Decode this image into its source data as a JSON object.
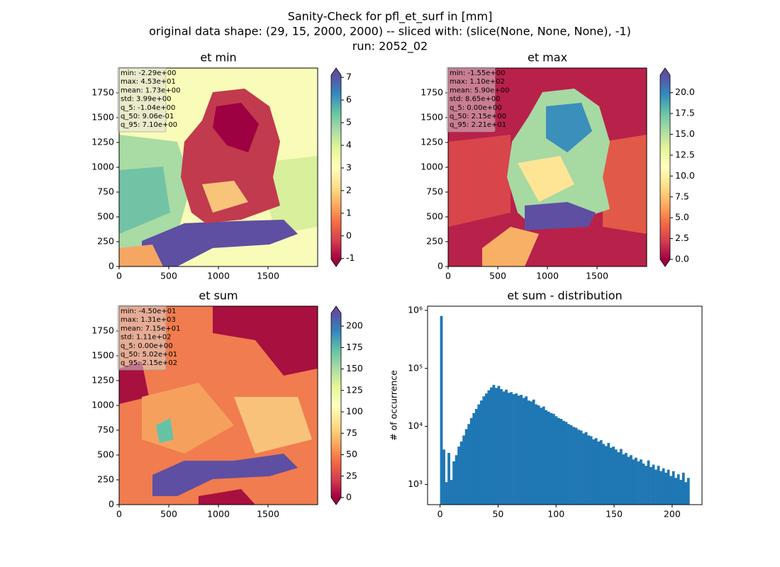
{
  "figure_title": [
    "Sanity-Check for pfl_et_surf in [mm]",
    "original data shape: (29, 15, 2000, 2000) -- sliced with: (slice(None, None, None), -1)",
    "run: 2052_02"
  ],
  "chart_data": [
    {
      "type": "heatmap",
      "title": "et min",
      "xlim": [
        0,
        2000
      ],
      "ylim": [
        0,
        2000
      ],
      "xticks": [
        0,
        500,
        1000,
        1500
      ],
      "yticks": [
        0,
        250,
        500,
        750,
        1000,
        1250,
        1500,
        1750
      ],
      "cmap": "Spectral",
      "clim": [
        -1.04,
        7.1
      ],
      "cticks": [
        -1,
        0,
        1,
        2,
        3,
        4,
        5,
        6,
        7
      ],
      "stats": [
        "min: -2.29e+00",
        "max: 4.53e+01",
        "mean: 1.73e+00",
        "std: 3.99e+00",
        "q_5: -1.04e+00",
        "q_50: 9.06e-01",
        "q_95: 7.10e+00"
      ]
    },
    {
      "type": "heatmap",
      "title": "et max",
      "xlim": [
        0,
        2000
      ],
      "ylim": [
        0,
        2000
      ],
      "xticks": [
        0,
        500,
        1000,
        1500
      ],
      "yticks": [
        0,
        250,
        500,
        750,
        1000,
        1250,
        1500,
        1750
      ],
      "cmap": "Spectral",
      "clim": [
        0.0,
        22.1
      ],
      "cticks": [
        {
          "value": 0,
          "label": "0.0"
        },
        2.5,
        {
          "value": 5,
          "label": "5.0"
        },
        7.5,
        {
          "value": 10,
          "label": "10.0"
        },
        12.5,
        {
          "value": 15,
          "label": "15.0"
        },
        17.5,
        {
          "value": 20,
          "label": "20.0"
        }
      ],
      "stats": [
        "min: -1.55e+00",
        "max: 1.10e+02",
        "mean: 5.90e+00",
        "std: 8.65e+00",
        "q_5: 0.00e+00",
        "q_50: 2.15e+00",
        "q_95: 2.21e+01"
      ]
    },
    {
      "type": "heatmap",
      "title": "et sum",
      "xlim": [
        0,
        2000
      ],
      "ylim": [
        0,
        2000
      ],
      "xticks": [
        0,
        500,
        1000,
        1500
      ],
      "yticks": [
        0,
        250,
        500,
        750,
        1000,
        1250,
        1500,
        1750
      ],
      "cmap": "Spectral",
      "clim": [
        0,
        215
      ],
      "cticks": [
        0,
        25,
        50,
        75,
        100,
        125,
        150,
        175,
        200
      ],
      "stats": [
        "min: -4.50e+01",
        "max: 1.31e+03",
        "mean: 7.15e+01",
        "std: 1.11e+02",
        "q_5: 0.00e+00",
        "q_50: 5.02e+01",
        "q_95: 2.15e+02"
      ]
    },
    {
      "type": "histogram",
      "title": "et sum - distribution",
      "ylabel": "# of occurrence",
      "color": "#1f77b4",
      "log_y": true,
      "xlim": [
        -10.75,
        225.75
      ],
      "ylim": [
        450,
        1180000
      ],
      "xticks": [
        0,
        50,
        100,
        150,
        200
      ],
      "yticks": [
        {
          "value": 1000,
          "label": "10³"
        },
        {
          "value": 10000,
          "label": "10⁴"
        },
        {
          "value": 100000,
          "label": "10⁵"
        },
        {
          "value": 1000000,
          "label": "10⁶"
        }
      ],
      "bins": [
        0,
        2.15,
        4.3,
        6.45,
        8.6,
        10.75,
        12.9,
        15.05,
        17.2,
        19.35,
        21.5,
        23.65,
        25.8,
        27.95,
        30.1,
        32.25,
        34.4,
        36.55,
        38.7,
        40.85,
        43,
        45.15,
        47.3,
        49.45,
        51.6,
        53.75,
        55.9,
        58.05,
        60.2,
        62.35,
        64.5,
        66.65,
        68.8,
        70.95,
        73.1,
        75.25,
        77.4,
        79.55,
        81.7,
        83.85,
        86,
        88.15,
        90.3,
        92.45,
        94.6,
        96.75,
        98.9,
        101.05,
        103.2,
        105.35,
        107.5,
        109.65,
        111.8,
        113.95,
        116.1,
        118.25,
        120.4,
        122.55,
        124.7,
        126.85,
        129,
        131.15,
        133.3,
        135.45,
        137.6,
        139.75,
        141.9,
        144.05,
        146.2,
        148.35,
        150.5,
        152.65,
        154.8,
        156.95,
        159.1,
        161.25,
        163.4,
        165.55,
        167.7,
        169.85,
        172,
        174.15,
        176.3,
        178.45,
        180.6,
        182.75,
        184.9,
        187.05,
        189.2,
        191.35,
        193.5,
        195.65,
        197.8,
        199.95,
        202.1,
        204.25,
        206.4,
        208.55,
        210.7,
        212.85,
        215
      ],
      "counts": [
        800000,
        4000,
        1100,
        3500,
        1200,
        2500,
        3200,
        4500,
        5500,
        7000,
        9000,
        11000,
        14000,
        17000,
        20000,
        24000,
        28000,
        33000,
        37000,
        42000,
        47000,
        52000,
        46000,
        50000,
        44000,
        40000,
        43000,
        38000,
        39000,
        36000,
        37000,
        34000,
        35000,
        31000,
        33000,
        28000,
        27000,
        29000,
        24000,
        23000,
        21000,
        22000,
        19000,
        18000,
        17000,
        16500,
        15000,
        14000,
        13500,
        12500,
        12000,
        11000,
        10500,
        9800,
        9500,
        8800,
        8500,
        7600,
        8000,
        7000,
        6800,
        6000,
        6300,
        5500,
        5800,
        5000,
        4600,
        5200,
        4300,
        4500,
        4000,
        3600,
        4100,
        3300,
        3500,
        3000,
        3200,
        2700,
        2900,
        2500,
        2700,
        2300,
        2100,
        2600,
        2000,
        2200,
        1800,
        2100,
        1700,
        1900,
        1600,
        1800,
        1400,
        1700,
        1300,
        1500,
        1200,
        1600,
        1100,
        1300
      ]
    }
  ]
}
